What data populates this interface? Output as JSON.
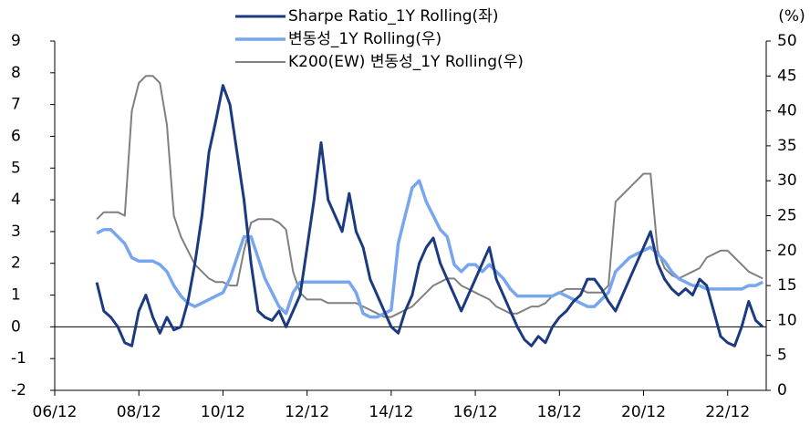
{
  "chart_data": {
    "type": "line",
    "y2label": "(%)",
    "x": [
      "07/12",
      "08/02",
      "08/04",
      "08/06",
      "08/08",
      "08/10",
      "08/12",
      "09/02",
      "09/04",
      "09/06",
      "09/08",
      "09/10",
      "09/12",
      "10/02",
      "10/04",
      "10/06",
      "10/08",
      "10/10",
      "10/12",
      "11/02",
      "11/04",
      "11/06",
      "11/08",
      "11/10",
      "11/12",
      "12/02",
      "12/04",
      "12/06",
      "12/08",
      "12/10",
      "12/12",
      "13/02",
      "13/04",
      "13/06",
      "13/08",
      "13/10",
      "13/12",
      "14/02",
      "14/04",
      "14/06",
      "14/08",
      "14/10",
      "14/12",
      "15/02",
      "15/04",
      "15/06",
      "15/08",
      "15/10",
      "15/12",
      "16/02",
      "16/04",
      "16/06",
      "16/08",
      "16/10",
      "16/12",
      "17/02",
      "17/04",
      "17/06",
      "17/08",
      "17/10",
      "17/12",
      "18/02",
      "18/04",
      "18/06",
      "18/08",
      "18/10",
      "18/12",
      "19/02",
      "19/04",
      "19/06",
      "19/08",
      "19/10",
      "19/12",
      "20/02",
      "20/04",
      "20/06",
      "20/08",
      "20/10",
      "20/12",
      "21/02",
      "21/04",
      "21/06",
      "21/08",
      "21/10",
      "21/12",
      "22/02",
      "22/04",
      "22/06",
      "22/08",
      "22/10",
      "22/12",
      "23/02",
      "23/04",
      "23/06",
      "23/08",
      "23/10"
    ],
    "series": [
      {
        "name": "Sharpe Ratio_1Y Rolling(좌)",
        "color": "#1b3a80",
        "axis": "y",
        "values": [
          1.4,
          0.5,
          0.3,
          0.0,
          -0.5,
          -0.6,
          0.5,
          1.0,
          0.3,
          -0.2,
          0.3,
          -0.1,
          0.0,
          0.8,
          2.0,
          3.5,
          5.5,
          6.5,
          7.6,
          7.0,
          5.5,
          4.0,
          2.0,
          0.5,
          0.3,
          0.2,
          0.5,
          0.0,
          0.5,
          1.0,
          2.5,
          4.0,
          5.8,
          4.0,
          3.5,
          3.0,
          4.2,
          3.0,
          2.5,
          1.5,
          1.0,
          0.5,
          0.0,
          -0.2,
          0.5,
          1.0,
          2.0,
          2.5,
          2.8,
          2.0,
          1.5,
          1.0,
          0.5,
          1.0,
          1.5,
          2.0,
          2.5,
          1.5,
          1.0,
          0.5,
          0.0,
          -0.4,
          -0.6,
          -0.3,
          -0.5,
          0.0,
          0.3,
          0.5,
          0.8,
          1.0,
          1.5,
          1.5,
          1.2,
          0.8,
          0.5,
          1.0,
          1.5,
          2.0,
          2.5,
          3.0,
          2.0,
          1.5,
          1.2,
          1.0,
          1.2,
          1.0,
          1.5,
          1.3,
          0.5,
          -0.3,
          -0.5,
          -0.6,
          0.0,
          0.8,
          0.2,
          0.0
        ]
      },
      {
        "name": "변동성_1Y Rolling(우)",
        "color": "#78a6ee",
        "axis": "y2",
        "values": [
          22.5,
          23,
          23,
          22,
          21,
          19,
          18.5,
          18.5,
          18.5,
          18,
          17,
          15,
          13.5,
          12.5,
          12,
          12.5,
          13,
          13.5,
          14,
          16,
          19,
          22,
          22,
          19,
          16,
          14,
          12,
          11,
          14,
          15.5,
          15.5,
          15.5,
          15.5,
          15.5,
          15.5,
          15.5,
          15.5,
          14,
          11,
          10.5,
          10.5,
          11,
          11.5,
          21,
          25,
          29,
          30,
          27,
          25,
          23,
          22,
          18,
          17,
          18,
          18,
          17,
          18,
          17,
          16,
          14.5,
          13.5,
          13.5,
          13.5,
          13.5,
          13.5,
          13.5,
          14,
          13.5,
          13,
          12.5,
          12,
          12,
          13,
          14,
          17,
          18,
          19,
          19.5,
          20,
          20.5,
          19.5,
          18.5,
          17,
          16,
          15.5,
          15,
          15,
          14.5,
          14.5,
          14.5,
          14.5,
          14.5,
          14.5,
          15,
          15,
          15.5
        ]
      },
      {
        "name": "K200(EW) 변동성_1Y Rolling(우)",
        "color": "#808080",
        "axis": "y2",
        "values": [
          24.5,
          25.5,
          25.5,
          25.5,
          25,
          40,
          44,
          45,
          45,
          44,
          38,
          25,
          22,
          20,
          18,
          17,
          16,
          15.5,
          15.5,
          15,
          15,
          20,
          24,
          24.5,
          24.5,
          24.5,
          24,
          23,
          17,
          14,
          13,
          13,
          13,
          12.5,
          12.5,
          12.5,
          12.5,
          12.5,
          12,
          11.5,
          11,
          10.5,
          10.5,
          11,
          11.5,
          12,
          13,
          14,
          15,
          15.5,
          16,
          16,
          15,
          14.5,
          14,
          13.5,
          13,
          12,
          11.5,
          11,
          11,
          11.5,
          12,
          12,
          12.5,
          13.5,
          14,
          14.5,
          14.5,
          14.5,
          14,
          14,
          14,
          15,
          27,
          28,
          29,
          30,
          31,
          31,
          20,
          17.5,
          16.5,
          16,
          16.5,
          17,
          17.5,
          19,
          19.5,
          20,
          20,
          19,
          18,
          17,
          16.5,
          16
        ]
      }
    ],
    "xlim": [
      "06/12",
      "23/11"
    ],
    "xticks": [
      "06/12",
      "08/12",
      "10/12",
      "12/12",
      "14/12",
      "16/12",
      "18/12",
      "20/12",
      "22/12"
    ],
    "ylim": [
      -2,
      9
    ],
    "yticks": [
      -2,
      -1,
      0,
      1,
      2,
      3,
      4,
      5,
      6,
      7,
      8,
      9
    ],
    "y2lim": [
      0,
      50
    ],
    "y2ticks": [
      0,
      5,
      10,
      15,
      20,
      25,
      30,
      35,
      40,
      45,
      50
    ],
    "legend": "top"
  }
}
